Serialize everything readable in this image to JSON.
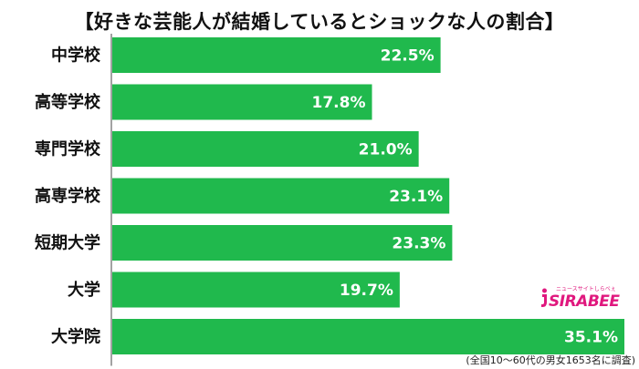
{
  "chart_data": {
    "type": "bar",
    "orientation": "horizontal",
    "title": "【好きな芸能人が結婚しているとショックな人の割合】",
    "categories": [
      "中学校",
      "高等学校",
      "専門学校",
      "高専学校",
      "短期大学",
      "大学",
      "大学院"
    ],
    "values": [
      22.5,
      17.8,
      21.0,
      23.1,
      23.3,
      19.7,
      35.1
    ],
    "value_labels": [
      "22.5%",
      "17.8%",
      "21.0%",
      "23.1%",
      "23.3%",
      "19.7%",
      "35.1%"
    ],
    "xlim": [
      0,
      35.1
    ],
    "grid": false,
    "bar_color": "#20b94d",
    "note": "(全国10～60代の男女1653名に調査)"
  },
  "logo": {
    "main": "SIRABEE",
    "sub": "ニュースサイトしらべぇ",
    "color": "#e0187e"
  }
}
